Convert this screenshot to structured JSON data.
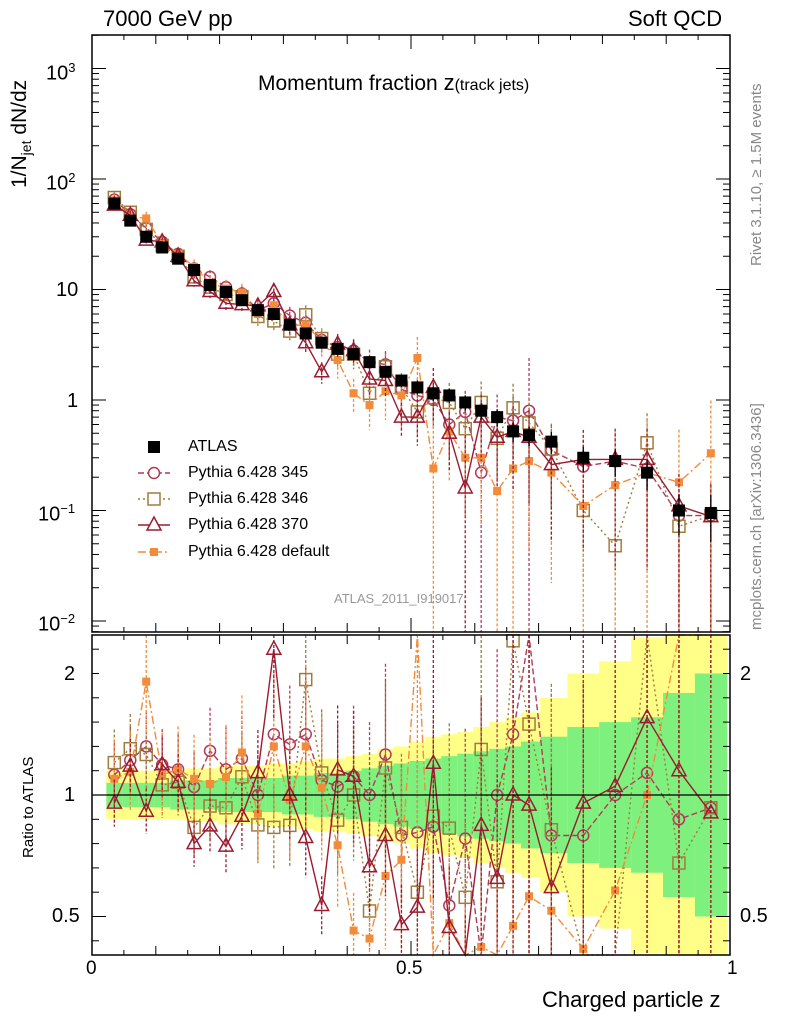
{
  "header": {
    "left": "7000 GeV pp",
    "right": "Soft QCD"
  },
  "plot_title": {
    "main": "Momentum fraction ",
    "z": "z",
    "sub": "(track jets)"
  },
  "side_labels": {
    "rivet": "Rivet 3.1.10, ≥ 1.5M events",
    "mcplots": "mcplots.cern.ch [arXiv:1306.3436]"
  },
  "watermark": "ATLAS_2011_I919017",
  "y_label_top": {
    "a": "1/N",
    "sub": "jet",
    "b": " dN/dz"
  },
  "y_label_bottom": "Ratio to ATLAS",
  "x_label": "Charged particle z",
  "ticks": {
    "x": [
      "0",
      "0.5",
      "1"
    ],
    "y_top": [
      "10",
      "3",
      "10",
      "2",
      "10",
      "1",
      "10",
      "−1",
      "10",
      "−2"
    ],
    "y_bottom": [
      "2",
      "1",
      "0.5"
    ]
  },
  "colors": {
    "atlas": "#000000",
    "p345": "#b03a5c",
    "p346": "#a07c3c",
    "p370": "#9b1b30",
    "pdef": "#f28c3b",
    "band_inner": "#7ef07e",
    "band_outer": "#ffff88"
  },
  "chart_data": {
    "type": "scatter",
    "title": "Momentum fraction z(track jets)",
    "xlabel": "Charged particle z",
    "ylabel": "1/N_jet dN/dz",
    "xlim": [
      0,
      1
    ],
    "ylim": [
      0.008,
      2000
    ],
    "yscale": "log",
    "ratio_ylim": [
      0.43,
      2.35
    ],
    "legend_position": "left-middle",
    "x": [
      0.035,
      0.06,
      0.085,
      0.11,
      0.135,
      0.16,
      0.185,
      0.21,
      0.235,
      0.26,
      0.285,
      0.31,
      0.335,
      0.36,
      0.385,
      0.41,
      0.435,
      0.46,
      0.485,
      0.51,
      0.535,
      0.56,
      0.585,
      0.61,
      0.635,
      0.66,
      0.685,
      0.72,
      0.77,
      0.82,
      0.87,
      0.92,
      0.97
    ],
    "band_ratio": {
      "inner": [
        0.05,
        0.05,
        0.05,
        0.05,
        0.06,
        0.06,
        0.06,
        0.07,
        0.07,
        0.07,
        0.07,
        0.08,
        0.08,
        0.09,
        0.09,
        0.1,
        0.11,
        0.12,
        0.13,
        0.14,
        0.15,
        0.16,
        0.17,
        0.18,
        0.19,
        0.2,
        0.22,
        0.24,
        0.28,
        0.3,
        0.32,
        0.42,
        0.5
      ],
      "outer": [
        0.1,
        0.1,
        0.1,
        0.1,
        0.1,
        0.11,
        0.11,
        0.12,
        0.12,
        0.12,
        0.13,
        0.13,
        0.14,
        0.15,
        0.15,
        0.16,
        0.17,
        0.19,
        0.2,
        0.22,
        0.24,
        0.25,
        0.26,
        0.28,
        0.3,
        0.32,
        0.34,
        0.4,
        0.5,
        0.55,
        0.65,
        0.75,
        0.8
      ]
    },
    "series": [
      {
        "name": "ATLAS",
        "key": "atlas",
        "marker": "square",
        "dash": "",
        "values": [
          60,
          42,
          30,
          24,
          19,
          15,
          11,
          9.5,
          8.0,
          6.5,
          6.0,
          4.8,
          4.0,
          3.3,
          2.9,
          2.6,
          2.2,
          1.8,
          1.5,
          1.3,
          1.15,
          1.1,
          0.95,
          0.8,
          0.7,
          0.52,
          0.48,
          0.42,
          0.3,
          0.28,
          0.22,
          0.1,
          0.095
        ],
        "err": [
          0.05,
          0.05,
          0.05,
          0.06,
          0.06,
          0.06,
          0.06,
          0.07,
          0.07,
          0.07,
          0.08,
          0.08,
          0.09,
          0.1,
          0.1,
          0.1,
          0.12,
          0.12,
          0.13,
          0.14,
          0.15,
          0.15,
          0.16,
          0.17,
          0.18,
          0.2,
          0.2,
          0.22,
          0.25,
          0.28,
          0.3,
          0.4,
          0.45
        ]
      },
      {
        "name": "Pythia 6.428 345",
        "key": "p345",
        "marker": "circle",
        "dash": "6,3",
        "values": [
          65,
          48,
          36,
          27,
          21,
          15.5,
          13.0,
          10.5,
          9.2,
          6.5,
          7.5,
          5.8,
          5.0,
          3.5,
          3.0,
          2.8,
          2.2,
          2.1,
          1.25,
          1.1,
          1.0,
          0.6,
          0.78,
          0.22,
          0.7,
          0.65,
          0.8,
          0.35,
          0.25,
          0.28,
          0.24,
          0.09,
          0.09
        ],
        "err": [
          0.12,
          0.12,
          0.12,
          0.13,
          0.13,
          0.14,
          0.15,
          0.16,
          0.17,
          0.18,
          0.2,
          0.2,
          0.22,
          0.24,
          0.25,
          0.27,
          0.3,
          0.32,
          0.35,
          0.4,
          0.45,
          0.5,
          0.55,
          2.0,
          0.6,
          0.65,
          2.0,
          0.7,
          0.75,
          0.8,
          0.85,
          0.9,
          0.95
        ]
      },
      {
        "name": "Pythia 6.428 346",
        "key": "p346",
        "marker": "open-square",
        "dash": "2,3",
        "values": [
          68,
          50,
          35,
          25,
          20,
          13,
          10.5,
          9.0,
          8.6,
          5.7,
          5.2,
          4.2,
          5.9,
          3.6,
          2.6,
          2.6,
          1.15,
          2.0,
          1.3,
          0.78,
          1.05,
          0.95,
          0.55,
          0.95,
          0.45,
          0.85,
          0.62,
          0.36,
          0.1,
          0.048,
          0.41,
          0.072,
          0.09
        ],
        "err": [
          0.12,
          0.12,
          0.12,
          0.13,
          0.13,
          0.14,
          0.15,
          0.16,
          0.17,
          0.18,
          0.2,
          0.2,
          0.22,
          0.24,
          0.25,
          0.27,
          0.3,
          0.32,
          0.35,
          0.4,
          0.45,
          0.5,
          0.55,
          0.55,
          0.6,
          0.65,
          0.7,
          0.7,
          0.75,
          0.8,
          0.85,
          0.9,
          0.95
        ]
      },
      {
        "name": "Pythia 6.428 370",
        "key": "p370",
        "marker": "open-triangle",
        "dash": "",
        "values": [
          58,
          47,
          28,
          27,
          20,
          12,
          9.6,
          7.5,
          7.3,
          7.1,
          9.6,
          4.8,
          3.3,
          1.8,
          3.2,
          2.8,
          1.55,
          1.5,
          0.7,
          0.7,
          1.3,
          0.5,
          0.16,
          0.7,
          0.46,
          0.52,
          0.46,
          0.26,
          0.29,
          0.29,
          0.29,
          0.11,
          0.088
        ],
        "err": [
          0.1,
          0.1,
          0.1,
          0.1,
          0.11,
          0.12,
          0.13,
          0.14,
          0.15,
          0.16,
          0.18,
          0.18,
          0.2,
          0.22,
          0.24,
          0.25,
          0.28,
          0.3,
          0.35,
          0.45,
          0.5,
          0.55,
          2.0,
          0.6,
          0.65,
          0.7,
          0.75,
          0.8,
          0.85,
          0.9,
          0.9,
          0.95,
          0.95
        ]
      },
      {
        "name": "Pythia 6.428 default",
        "key": "pdef",
        "marker": "square",
        "dash": "8,3,2,3",
        "values": [
          64,
          46,
          44,
          26,
          21,
          16,
          11.5,
          10.2,
          9.4,
          6.0,
          7.2,
          4.7,
          4.8,
          3.4,
          2.3,
          1.15,
          0.9,
          1.2,
          1.1,
          2.4,
          0.24,
          0.52,
          0.3,
          0.3,
          0.15,
          0.24,
          0.28,
          0.22,
          0.11,
          0.17,
          0.22,
          0.18,
          0.33
        ],
        "err": [
          0.15,
          0.15,
          0.15,
          0.16,
          0.16,
          0.17,
          0.18,
          0.2,
          0.2,
          0.22,
          0.25,
          0.25,
          0.28,
          0.3,
          0.32,
          0.35,
          0.4,
          0.45,
          0.5,
          0.55,
          2.0,
          0.65,
          0.7,
          0.75,
          2.0,
          2.0,
          0.85,
          0.9,
          0.95,
          2.0,
          2.0,
          2.0,
          2.0
        ]
      }
    ]
  }
}
